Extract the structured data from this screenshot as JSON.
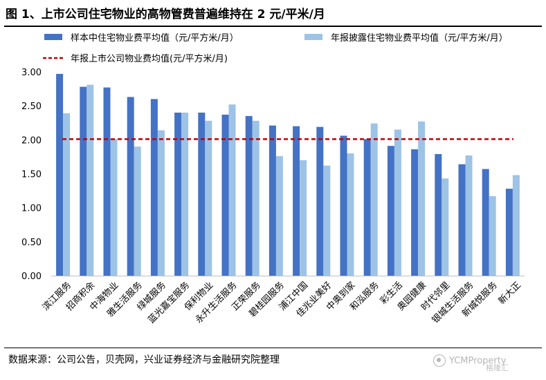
{
  "title": "图 1、上市公司住宅物业的高物管费普遍维持在 2 元/平米/月",
  "source": "数据来源：公司公告，贝壳网，兴业证券经济与金融研究院整理",
  "watermark": {
    "text": "YCMProperty",
    "brand": "格隆汇"
  },
  "chart_data": {
    "type": "bar",
    "title": "",
    "xlabel": "",
    "ylabel": "",
    "ylim": [
      0,
      3
    ],
    "yticks": [
      "0.00",
      "0.50",
      "1.00",
      "1.50",
      "2.00",
      "2.50",
      "3.00"
    ],
    "grid": false,
    "legend_position": "top",
    "categories": [
      "滨江服务",
      "招商积余",
      "中海物业",
      "雅生活服务",
      "绿城服务",
      "蓝光嘉宝服务",
      "保利物业",
      "永升生活服务",
      "正荣服务",
      "碧桂园服务",
      "浦江中国",
      "佳兆业美好",
      "中奥到家",
      "和泓服务",
      "彩生活",
      "奥园健康",
      "时代邻里",
      "银城生活服务",
      "新城悦服务",
      "新大正"
    ],
    "series": [
      {
        "name": "样本中住宅物业费平均值（元/平方米/月）",
        "color": "#4472c4",
        "values": [
          2.97,
          2.78,
          2.77,
          2.63,
          2.6,
          2.4,
          2.4,
          2.37,
          2.35,
          2.21,
          2.2,
          2.19,
          2.06,
          2.01,
          1.91,
          1.86,
          1.79,
          1.64,
          1.57,
          1.28
        ]
      },
      {
        "name": "年报披露住宅物业费平均值（元/平方米/月）",
        "color": "#9dc3e6",
        "values": [
          2.39,
          2.81,
          2.01,
          1.9,
          2.14,
          2.4,
          2.28,
          2.52,
          2.28,
          1.76,
          1.7,
          1.62,
          1.8,
          2.24,
          2.15,
          2.27,
          1.43,
          1.77,
          1.17,
          1.48
        ]
      }
    ],
    "reference_line": {
      "name": "年报上市公司物业费均值(元/平方米/月)",
      "value": 2.01,
      "color": "#c00000"
    }
  }
}
